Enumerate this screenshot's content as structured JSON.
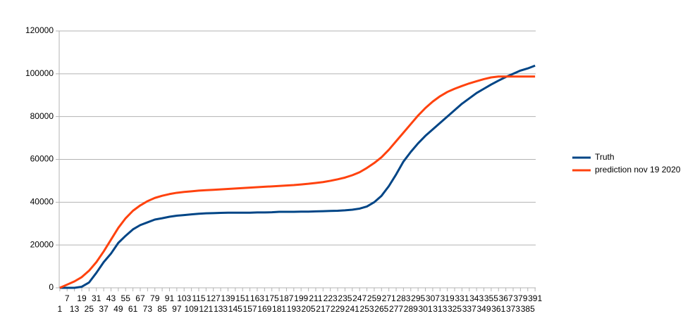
{
  "chart_data": {
    "type": "line",
    "x": [
      1,
      7,
      13,
      19,
      25,
      31,
      37,
      43,
      49,
      55,
      61,
      67,
      73,
      79,
      85,
      91,
      97,
      103,
      109,
      115,
      121,
      127,
      133,
      139,
      145,
      151,
      157,
      163,
      169,
      175,
      181,
      187,
      193,
      199,
      205,
      211,
      217,
      223,
      229,
      235,
      241,
      247,
      253,
      259,
      265,
      271,
      277,
      283,
      289,
      295,
      301,
      307,
      313,
      319,
      325,
      331,
      337,
      343,
      349,
      355,
      361,
      367,
      373,
      379,
      385,
      391
    ],
    "xlim": [
      0.5,
      391.5
    ],
    "xticks": [
      1,
      7,
      13,
      19,
      25,
      31,
      37,
      43,
      49,
      55,
      61,
      67,
      73,
      79,
      85,
      91,
      97,
      103,
      109,
      115,
      121,
      127,
      133,
      139,
      145,
      151,
      157,
      163,
      169,
      175,
      181,
      187,
      193,
      199,
      205,
      211,
      217,
      223,
      229,
      235,
      241,
      247,
      253,
      259,
      265,
      271,
      277,
      283,
      289,
      295,
      301,
      307,
      313,
      319,
      325,
      331,
      337,
      343,
      349,
      355,
      361,
      367,
      373,
      379,
      385,
      391
    ],
    "ylim": [
      0,
      120000
    ],
    "yticks": [
      0,
      20000,
      40000,
      60000,
      80000,
      100000,
      120000
    ],
    "grid": true,
    "legend": "right",
    "series": [
      {
        "name": "Truth",
        "color": "#004586",
        "values": [
          0,
          0,
          0,
          500,
          2500,
          7000,
          12000,
          16000,
          21000,
          24300,
          27300,
          29300,
          30600,
          31900,
          32500,
          33200,
          33700,
          34000,
          34300,
          34600,
          34800,
          34900,
          35000,
          35100,
          35100,
          35100,
          35100,
          35200,
          35200,
          35300,
          35500,
          35500,
          35500,
          35600,
          35600,
          35700,
          35800,
          35900,
          36000,
          36200,
          36500,
          37000,
          38000,
          40000,
          43000,
          47500,
          53000,
          59000,
          63500,
          67500,
          71000,
          74000,
          77000,
          80000,
          83000,
          86000,
          88500,
          91000,
          93000,
          95000,
          96800,
          98500,
          100000,
          101500,
          102500,
          103800
        ]
      },
      {
        "name": "prediction nov 19 2020",
        "color": "#ff420e",
        "values": [
          0,
          1500,
          3000,
          5000,
          8000,
          12000,
          17000,
          22500,
          28000,
          32500,
          36000,
          38500,
          40500,
          42000,
          43000,
          43800,
          44400,
          44800,
          45100,
          45400,
          45600,
          45800,
          46000,
          46200,
          46400,
          46600,
          46800,
          47000,
          47200,
          47400,
          47600,
          47800,
          48000,
          48300,
          48600,
          49000,
          49400,
          50000,
          50700,
          51500,
          52600,
          54000,
          56000,
          58300,
          61000,
          64500,
          68500,
          72500,
          76500,
          80500,
          84000,
          87000,
          89500,
          91500,
          93000,
          94300,
          95500,
          96500,
          97500,
          98300,
          98700,
          98700,
          98700,
          98700,
          98700,
          98700
        ]
      }
    ]
  }
}
